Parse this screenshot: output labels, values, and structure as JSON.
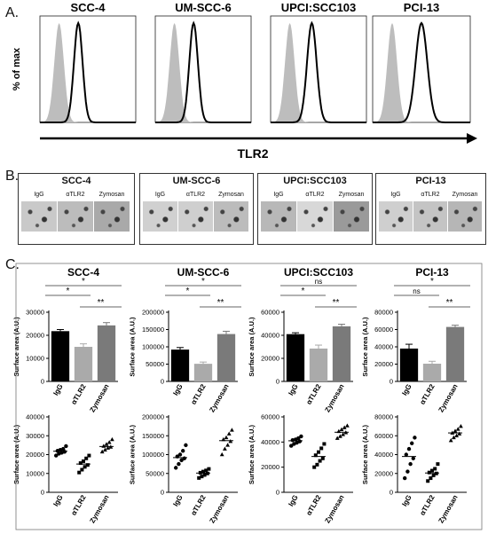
{
  "panels": {
    "a": "A.",
    "b": "B.",
    "c": "C."
  },
  "panel_a": {
    "y_label": "% of max",
    "x_label": "TLR2",
    "cell_lines": [
      "SCC-4",
      "UM-SCC-6",
      "UPCI:SCC103",
      "PCI-13"
    ]
  },
  "panel_b": {
    "cell_lines": [
      "SCC-4",
      "UM-SCC-6",
      "UPCI:SCC103",
      "PCI-13"
    ],
    "conditions": [
      "IgG",
      "αTLR2",
      "Zymosan"
    ]
  },
  "colors": {
    "isotype_fill": "#bdbdbd",
    "tlr2_line": "#000000",
    "bar_igg": "#000000",
    "bar_atlr2": "#aaaaaa",
    "bar_zymosan": "#7a7a7a"
  },
  "chart_data": [
    {
      "type": "bar",
      "panel": "C",
      "row": "top",
      "title": "SCC-4",
      "categories": [
        "IgG",
        "αTLR2",
        "Zymosan"
      ],
      "values": [
        21800,
        15000,
        24300
      ],
      "errors": [
        700,
        1300,
        1200
      ],
      "ylabel": "Surface area (A.U.)",
      "ylim": [
        0,
        30000
      ],
      "yticks": [
        "0",
        "10000",
        "20000",
        "30000"
      ],
      "significance": [
        {
          "pair": [
            "IgG",
            "αTLR2"
          ],
          "label": "*"
        },
        {
          "pair": [
            "IgG",
            "Zymosan"
          ],
          "label": "*"
        },
        {
          "pair": [
            "αTLR2",
            "Zymosan"
          ],
          "label": "**"
        }
      ]
    },
    {
      "type": "bar",
      "panel": "C",
      "row": "top",
      "title": "UM-SCC-6",
      "categories": [
        "IgG",
        "αTLR2",
        "Zymosan"
      ],
      "values": [
        92000,
        51000,
        137000
      ],
      "errors": [
        6000,
        5000,
        8000
      ],
      "ylabel": "Surface area (A.U.)",
      "ylim": [
        0,
        200000
      ],
      "yticks": [
        "0",
        "50000",
        "100000",
        "150000",
        "200000"
      ],
      "significance": [
        {
          "pair": [
            "IgG",
            "αTLR2"
          ],
          "label": "*"
        },
        {
          "pair": [
            "IgG",
            "Zymosan"
          ],
          "label": "*"
        },
        {
          "pair": [
            "αTLR2",
            "Zymosan"
          ],
          "label": "**"
        }
      ]
    },
    {
      "type": "bar",
      "panel": "C",
      "row": "top",
      "title": "UPCI:SCC103",
      "categories": [
        "IgG",
        "αTLR2",
        "Zymosan"
      ],
      "values": [
        41000,
        28500,
        47800
      ],
      "errors": [
        1200,
        3000,
        1800
      ],
      "ylabel": "Surface area (A.U.)",
      "ylim": [
        0,
        60000
      ],
      "yticks": [
        "0",
        "20000",
        "40000",
        "60000"
      ],
      "significance": [
        {
          "pair": [
            "IgG",
            "αTLR2"
          ],
          "label": "*"
        },
        {
          "pair": [
            "IgG",
            "Zymosan"
          ],
          "label": "ns"
        },
        {
          "pair": [
            "αTLR2",
            "Zymosan"
          ],
          "label": "**"
        }
      ]
    },
    {
      "type": "bar",
      "panel": "C",
      "row": "top",
      "title": "PCI-13",
      "categories": [
        "IgG",
        "αTLR2",
        "Zymosan"
      ],
      "values": [
        38000,
        20500,
        63000
      ],
      "errors": [
        5000,
        2800,
        2000
      ],
      "ylabel": "Surface area (A.U.)",
      "ylim": [
        0,
        80000
      ],
      "yticks": [
        "0",
        "20000",
        "40000",
        "60000",
        "80000"
      ],
      "significance": [
        {
          "pair": [
            "IgG",
            "αTLR2"
          ],
          "label": "ns"
        },
        {
          "pair": [
            "IgG",
            "Zymosan"
          ],
          "label": "*"
        },
        {
          "pair": [
            "αTLR2",
            "Zymosan"
          ],
          "label": "**"
        }
      ]
    },
    {
      "type": "scatter",
      "panel": "C",
      "row": "bottom",
      "title": "SCC-4",
      "categories": [
        "IgG",
        "αTLR2",
        "Zymosan"
      ],
      "points": [
        [
          19500,
          20500,
          21000,
          21500,
          22000,
          22500,
          23000,
          24500
        ],
        [
          10500,
          12000,
          13500,
          14500,
          15500,
          16500,
          18000,
          19500
        ],
        [
          21500,
          22500,
          23500,
          24000,
          24500,
          25500,
          26500,
          28000
        ]
      ],
      "means": [
        21800,
        15000,
        24300
      ],
      "ylabel": "Surface area (A.U.)",
      "ylim": [
        0,
        40000
      ],
      "yticks": [
        "0",
        "10000",
        "20000",
        "30000",
        "40000"
      ]
    },
    {
      "type": "scatter",
      "panel": "C",
      "row": "bottom",
      "title": "UM-SCC-6",
      "categories": [
        "IgG",
        "αTLR2",
        "Zymosan"
      ],
      "points": [
        [
          65000,
          75000,
          85000,
          90000,
          95000,
          100000,
          110000,
          125000
        ],
        [
          38000,
          42000,
          46000,
          50000,
          52000,
          55000,
          58000,
          62000
        ],
        [
          100000,
          115000,
          125000,
          135000,
          140000,
          145000,
          155000,
          165000
        ]
      ],
      "means": [
        92000,
        51000,
        137000
      ],
      "ylabel": "Surface area (A.U.)",
      "ylim": [
        0,
        200000
      ],
      "yticks": [
        "0",
        "50000",
        "100000",
        "150000",
        "200000"
      ]
    },
    {
      "type": "scatter",
      "panel": "C",
      "row": "bottom",
      "title": "UPCI:SCC103",
      "categories": [
        "IgG",
        "αTLR2",
        "Zymosan"
      ],
      "points": [
        [
          37000,
          38500,
          39500,
          40500,
          41500,
          42000,
          43000,
          44500
        ],
        [
          20000,
          22000,
          25000,
          27000,
          29500,
          32000,
          35000,
          38500
        ],
        [
          43000,
          44500,
          46000,
          47500,
          48500,
          50000,
          51500,
          53000
        ]
      ],
      "means": [
        41000,
        28500,
        47800
      ],
      "ylabel": "Surface area (A.U.)",
      "ylim": [
        0,
        60000
      ],
      "yticks": [
        "0",
        "20000",
        "40000",
        "60000"
      ]
    },
    {
      "type": "scatter",
      "panel": "C",
      "row": "bottom",
      "title": "PCI-13",
      "categories": [
        "IgG",
        "αTLR2",
        "Zymosan"
      ],
      "points": [
        [
          15000,
          22000,
          30000,
          36000,
          40000,
          46000,
          52000,
          58000
        ],
        [
          12000,
          15000,
          18000,
          20000,
          21000,
          23000,
          25000,
          30000
        ],
        [
          55000,
          58000,
          60000,
          62000,
          63000,
          65000,
          67000,
          70000
        ]
      ],
      "means": [
        38000,
        20500,
        63000
      ],
      "ylabel": "Surface area (A.U.)",
      "ylim": [
        0,
        80000
      ],
      "yticks": [
        "0",
        "20000",
        "40000",
        "60000",
        "80000"
      ]
    }
  ]
}
